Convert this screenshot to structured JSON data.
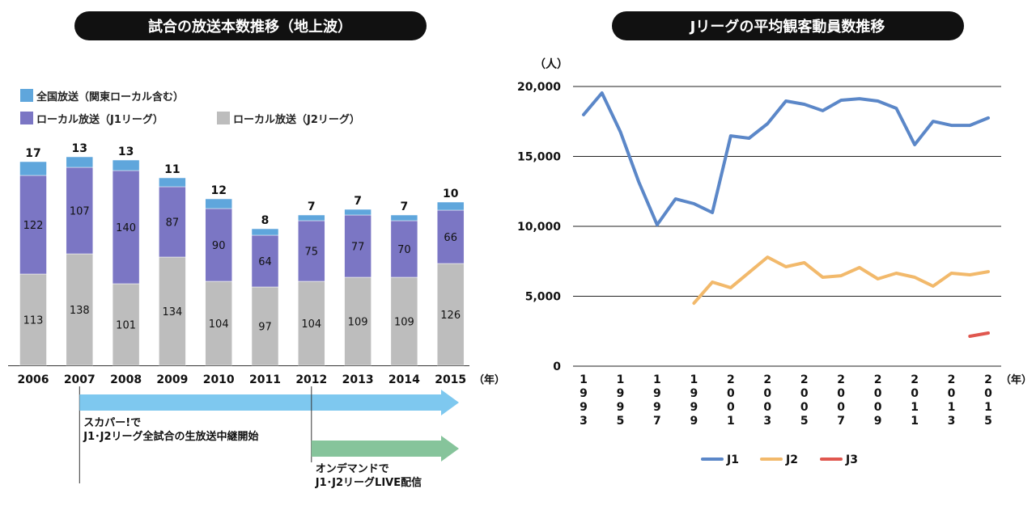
{
  "chart_data": [
    {
      "type": "bar",
      "stacked": true,
      "title": "試合の放送本数推移（地上波）",
      "categories": [
        "2006",
        "2007",
        "2008",
        "2009",
        "2010",
        "2011",
        "2012",
        "2013",
        "2014",
        "2015"
      ],
      "x_unit": "（年）",
      "series": [
        {
          "name": "ローカル放送（J2リーグ）",
          "color": "#bdbdbd",
          "values": [
            113,
            138,
            101,
            134,
            104,
            97,
            104,
            109,
            109,
            126
          ]
        },
        {
          "name": "ローカル放送（J1リーグ）",
          "color": "#7b76c4",
          "values": [
            122,
            107,
            140,
            87,
            90,
            64,
            75,
            77,
            70,
            66
          ]
        },
        {
          "name": "全国放送（関東ローカル含む）",
          "color": "#5fa6dc",
          "values": [
            17,
            13,
            13,
            11,
            12,
            8,
            7,
            7,
            7,
            10
          ]
        }
      ],
      "legend_order": [
        2,
        1,
        0
      ],
      "legend_placement": "top-left",
      "annotations": [
        {
          "from": "2007",
          "color": "#7ec8ef",
          "text": [
            "スカパー!で",
            "J1･J2リーグ全試合の生放送中継開始"
          ]
        },
        {
          "from": "2012",
          "color": "#86c49b",
          "text": [
            "オンデマンドで",
            "J1･J2リーグLIVE配信"
          ]
        }
      ]
    },
    {
      "type": "line",
      "title": "Jリーグの平均観客動員数推移",
      "ylabel": "（人）",
      "x_unit": "（年）",
      "ylim": [
        0,
        20000
      ],
      "yticks": [
        0,
        5000,
        10000,
        15000,
        20000
      ],
      "ytick_labels": [
        "0",
        "5,000",
        "10,000",
        "15,000",
        "20,000"
      ],
      "grid": true,
      "x": [
        1993,
        1994,
        1995,
        1996,
        1997,
        1998,
        1999,
        2000,
        2001,
        2002,
        2003,
        2004,
        2005,
        2006,
        2007,
        2008,
        2009,
        2010,
        2011,
        2012,
        2013,
        2014,
        2015
      ],
      "xtick_labels": [
        "1993",
        "1995",
        "1997",
        "1999",
        "2001",
        "2003",
        "2005",
        "2007",
        "2009",
        "2011",
        "2013",
        "2015"
      ],
      "legend_placement": "bottom",
      "series": [
        {
          "name": "J1",
          "color": "#5b87c8",
          "values": [
            17980,
            19540,
            16760,
            13180,
            10110,
            11960,
            11620,
            10980,
            16470,
            16300,
            17340,
            18960,
            18730,
            18270,
            19020,
            19130,
            18960,
            18440,
            15840,
            17510,
            17220,
            17220,
            17750
          ]
        },
        {
          "name": "J2",
          "color": "#f2b96b",
          "values": [
            null,
            null,
            null,
            null,
            null,
            null,
            4500,
            6010,
            5610,
            6700,
            7800,
            7110,
            7400,
            6360,
            6470,
            7050,
            6240,
            6650,
            6360,
            5720,
            6650,
            6530,
            6760
          ]
        },
        {
          "name": "J3",
          "color": "#e0574f",
          "values": [
            null,
            null,
            null,
            null,
            null,
            null,
            null,
            null,
            null,
            null,
            null,
            null,
            null,
            null,
            null,
            null,
            null,
            null,
            null,
            null,
            null,
            2140,
            2370
          ]
        }
      ]
    }
  ]
}
